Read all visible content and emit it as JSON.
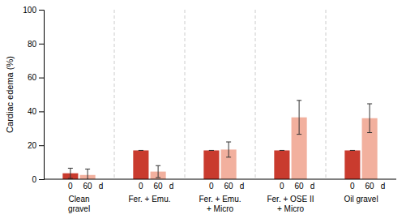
{
  "chart_data": {
    "type": "bar",
    "categories": [
      "Clean\ngravel",
      "Fer. + Emu.",
      "Fer. + Emu.\n+ Micro",
      "Fer. + OSE II\n+ Micro",
      "Oil gravel"
    ],
    "series": [
      {
        "name": "0",
        "color": "#c93b2e",
        "values": [
          3.5,
          17.0,
          17.0,
          17.0,
          17.0
        ],
        "errors": [
          3.0,
          0,
          0,
          0,
          0
        ]
      },
      {
        "name": "60",
        "color": "#f2b09e",
        "values": [
          2.5,
          4.5,
          17.5,
          36.5,
          36.0
        ],
        "errors": [
          3.5,
          3.5,
          4.5,
          10.0,
          8.5
        ]
      }
    ],
    "annotation": "d",
    "y_label": "Cardiac edema (%)",
    "ylim": [
      0,
      100
    ],
    "yticks": [
      0,
      20,
      40,
      60,
      80,
      100
    ]
  }
}
